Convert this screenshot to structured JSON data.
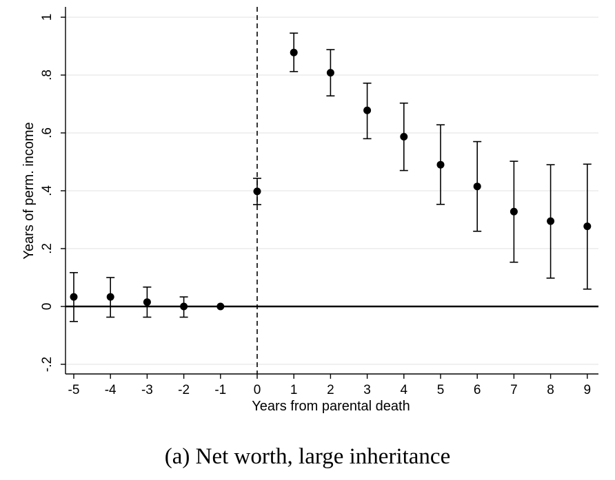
{
  "chart_data": {
    "type": "scatter",
    "xlabel": "Years from parental death",
    "ylabel": "Years of perm. income",
    "xlim": [
      -5,
      9
    ],
    "ylim": [
      -0.2,
      1
    ],
    "x_ticks": [
      "-5",
      "-4",
      "-3",
      "-2",
      "-1",
      "0",
      "1",
      "2",
      "3",
      "4",
      "5",
      "6",
      "7",
      "8",
      "9"
    ],
    "y_ticks": [
      {
        "value": -0.2,
        "label": "-.2"
      },
      {
        "value": 0,
        "label": "0"
      },
      {
        "value": 0.2,
        "label": ".2"
      },
      {
        "value": 0.4,
        "label": ".4"
      },
      {
        "value": 0.6,
        "label": ".6"
      },
      {
        "value": 0.8,
        "label": ".8"
      },
      {
        "value": 1,
        "label": "1"
      }
    ],
    "grid": true,
    "reference_lines": {
      "horizontal_y": 0,
      "vertical_dashed_x": 0
    },
    "points": [
      {
        "x": -5,
        "y": 0.033,
        "lo": -0.052,
        "hi": 0.117
      },
      {
        "x": -4,
        "y": 0.033,
        "lo": -0.037,
        "hi": 0.1
      },
      {
        "x": -3,
        "y": 0.015,
        "lo": -0.037,
        "hi": 0.067
      },
      {
        "x": -2,
        "y": 0.0,
        "lo": -0.037,
        "hi": 0.033
      },
      {
        "x": -1,
        "y": 0.0
      },
      {
        "x": 0,
        "y": 0.398,
        "lo": 0.352,
        "hi": 0.443
      },
      {
        "x": 1,
        "y": 0.878,
        "lo": 0.812,
        "hi": 0.945
      },
      {
        "x": 2,
        "y": 0.808,
        "lo": 0.728,
        "hi": 0.888
      },
      {
        "x": 3,
        "y": 0.678,
        "lo": 0.58,
        "hi": 0.772
      },
      {
        "x": 4,
        "y": 0.587,
        "lo": 0.47,
        "hi": 0.703
      },
      {
        "x": 5,
        "y": 0.49,
        "lo": 0.353,
        "hi": 0.628
      },
      {
        "x": 6,
        "y": 0.415,
        "lo": 0.26,
        "hi": 0.57
      },
      {
        "x": 7,
        "y": 0.328,
        "lo": 0.153,
        "hi": 0.502
      },
      {
        "x": 8,
        "y": 0.295,
        "lo": 0.098,
        "hi": 0.49
      },
      {
        "x": 9,
        "y": 0.277,
        "lo": 0.06,
        "hi": 0.492
      }
    ]
  },
  "caption": "(a) Net worth, large inheritance"
}
